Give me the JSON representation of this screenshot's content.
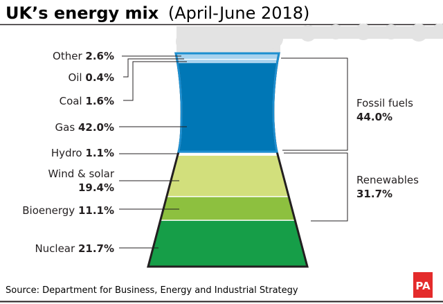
{
  "title": {
    "bold": "UK’s energy mix",
    "regular": "(April-June 2018)"
  },
  "source": "Source: Department for Business, Energy and Industrial Strategy",
  "logo": "PA",
  "chart_data": {
    "type": "stacked-bar",
    "title": "UK’s energy mix (April-June 2018)",
    "unit": "%",
    "segments": [
      {
        "name": "Other",
        "value": 2.6,
        "value_label": "2.6%",
        "color": "#a9d3ee"
      },
      {
        "name": "Oil",
        "value": 0.4,
        "value_label": "0.4%",
        "color": "#ffffff"
      },
      {
        "name": "Coal",
        "value": 1.6,
        "value_label": "1.6%",
        "color": "#a9d3ee"
      },
      {
        "name": "Gas",
        "value": 42.0,
        "value_label": "42.0%",
        "color": "#0077b6"
      },
      {
        "name": "Hydro",
        "value": 1.1,
        "value_label": "1.1%",
        "color": "#ffffff"
      },
      {
        "name": "Wind & solar",
        "value": 19.4,
        "value_label": "19.4%",
        "color": "#d2df7c"
      },
      {
        "name": "Bioenergy",
        "value": 11.1,
        "value_label": "11.1%",
        "color": "#8dc03f"
      },
      {
        "name": "Nuclear",
        "value": 21.7,
        "value_label": "21.7%",
        "color": "#169e48"
      }
    ],
    "groups": [
      {
        "name": "Fossil fuels",
        "value": 44.0,
        "value_label": "44.0%"
      },
      {
        "name": "Renewables",
        "value": 31.7,
        "value_label": "31.7%"
      }
    ]
  }
}
